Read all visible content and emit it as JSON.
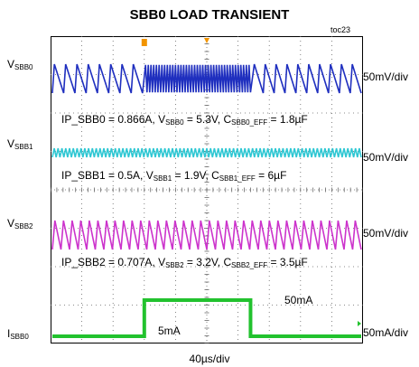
{
  "title": "SBB0 LOAD TRANSIENT",
  "figure_id": "toc23",
  "timebase": "40µs/div",
  "channels": [
    {
      "key": "sbb0",
      "label_main": "V",
      "label_sub": "SBB0",
      "scale": "50mV/div",
      "color": "#1f2fbf"
    },
    {
      "key": "sbb1",
      "label_main": "V",
      "label_sub": "SBB1",
      "scale": "50mV/div",
      "color": "#2fc7d3"
    },
    {
      "key": "sbb2",
      "label_main": "V",
      "label_sub": "SBB2",
      "scale": "50mV/div",
      "color": "#cc33cc"
    },
    {
      "key": "isbb0",
      "label_main": "I",
      "label_sub": "SBB0",
      "scale": "50mA/div",
      "color": "#22c22e"
    }
  ],
  "annotations": {
    "sbb0": {
      "p1": "IP_SBB0 = 0.866A, V",
      "s1": "SBB0",
      "p2": " = 5.3V, C",
      "s2": "SBB0_EFF",
      "p3": " = 1.8µF"
    },
    "sbb1": {
      "p1": "IP_SBB1 = 0.5A, V",
      "s1": "SBB1",
      "p2": " = 1.9V, C",
      "s2": "SBB1_EFF",
      "p3": " = 6µF"
    },
    "sbb2": {
      "p1": "IP_SBB2 = 0.707A, V",
      "s1": "SBB2",
      "p2": " = 3.2V, C",
      "s2": "SBB2_EFF",
      "p3": " = 3.5µF"
    }
  },
  "current_labels": {
    "low": "5mA",
    "high": "50mA"
  },
  "chart_data": {
    "type": "line",
    "title": "SBB0 LOAD TRANSIENT",
    "xlabel": "40µs/div",
    "x_divisions": 10,
    "y_divisions": 8,
    "grid": true,
    "series": [
      {
        "name": "VSBB0",
        "scale": "50mV/div"
      },
      {
        "name": "VSBB1",
        "scale": "50mV/div"
      },
      {
        "name": "VSBB2",
        "scale": "50mV/div"
      },
      {
        "name": "ISBB0",
        "scale": "50mA/div",
        "levels_mA": [
          5,
          50
        ],
        "step_up_div": 3.0,
        "step_down_div": 6.4
      }
    ]
  }
}
